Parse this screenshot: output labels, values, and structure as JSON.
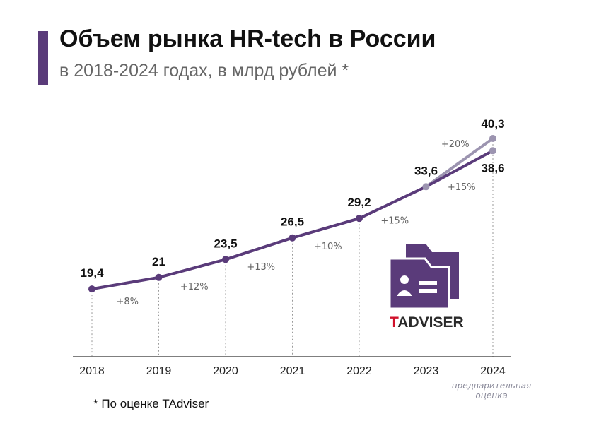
{
  "header": {
    "title": "Объем рынка HR-tech в России",
    "subtitle": "в 2018-2024 годах, в млрд рублей *"
  },
  "footnote": "* По оценке TAdviser",
  "logo": {
    "text_red": "T",
    "text_dark": "ADVISER",
    "icon": "folder-id-card-icon"
  },
  "colors": {
    "accent": "#5a3b7a",
    "main_line": "#5a3b7a",
    "estimate_line": "#9c94b0",
    "logo_red": "#d0112b"
  },
  "chart_data": {
    "type": "line",
    "categories": [
      "2018",
      "2019",
      "2020",
      "2021",
      "2022",
      "2023",
      "2024"
    ],
    "ylim": [
      10,
      45
    ],
    "series": [
      {
        "values": [
          19.4,
          21,
          23.5,
          26.5,
          29.2,
          33.6,
          38.6
        ],
        "value_labels": [
          "19,4",
          "21",
          "23,5",
          "26,5",
          "29,2",
          "33,6",
          "38,6"
        ]
      },
      {
        "values": [
          null,
          null,
          null,
          null,
          null,
          33.6,
          40.3
        ],
        "value_labels": [
          "",
          "",
          "",
          "",
          "",
          "",
          "40,3"
        ]
      }
    ],
    "growth_labels": [
      "+8%",
      "+12%",
      "+13%",
      "+10%",
      "+15%",
      "+15%"
    ],
    "estimate_growth_label": "+20%",
    "x_annotation": {
      "category": "2024",
      "text": [
        "предварительная",
        "оценка"
      ]
    },
    "grid": false
  }
}
